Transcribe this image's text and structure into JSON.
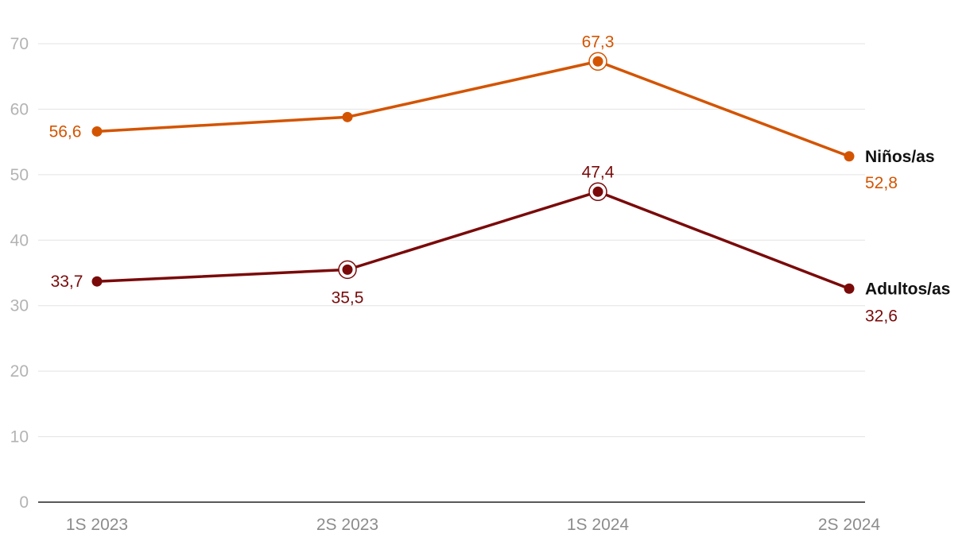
{
  "chart_data": {
    "type": "line",
    "title": "",
    "xlabel": "",
    "ylabel": "",
    "categories": [
      "1S 2023",
      "2S 2023",
      "1S 2024",
      "2S 2024"
    ],
    "ylim": [
      0,
      70
    ],
    "yticks": [
      0,
      10,
      20,
      30,
      40,
      50,
      60,
      70
    ],
    "grid": true,
    "series": [
      {
        "name": "Niños/as",
        "color": "#d35400",
        "values": [
          56.6,
          58.8,
          67.3,
          52.8
        ],
        "labels": [
          "56,6",
          "",
          "67,3",
          "52,8"
        ],
        "highlighted": [
          false,
          false,
          true,
          false
        ]
      },
      {
        "name": "Adultos/as",
        "color": "#7a0a0a",
        "values": [
          33.7,
          35.5,
          47.4,
          32.6
        ],
        "labels": [
          "33,7",
          "35,5",
          "47,4",
          "32,6"
        ],
        "highlighted": [
          false,
          true,
          true,
          false
        ]
      }
    ]
  }
}
